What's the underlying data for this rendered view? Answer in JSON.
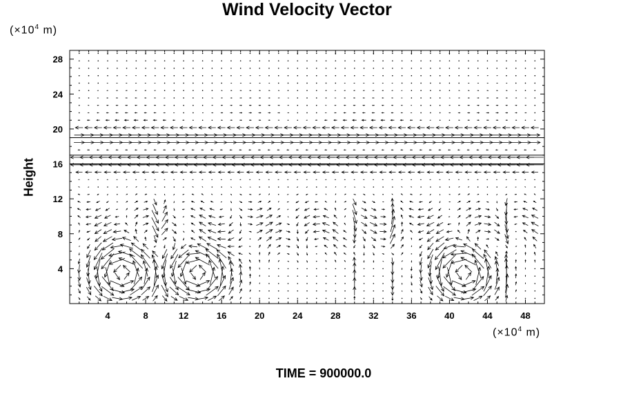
{
  "chart_data": {
    "type": "vector-field",
    "title": "Wind Velocity Vector",
    "ylabel": "Height",
    "x_unit": {
      "prefix": "(×10",
      "exp": "4",
      "suffix": " m)"
    },
    "y_unit": {
      "prefix": "(×10",
      "exp": "4",
      "suffix": " m)"
    },
    "xlim": [
      0,
      50
    ],
    "ylim": [
      0,
      29
    ],
    "xticks": [
      4,
      8,
      12,
      16,
      20,
      24,
      28,
      32,
      36,
      40,
      44,
      48
    ],
    "yticks": [
      4,
      8,
      12,
      16,
      20,
      24,
      28
    ],
    "grid": false,
    "horizontal_lines_y": [
      16,
      17,
      19
    ],
    "vortex_centers_x": [
      5.5,
      13.5,
      41.5
    ],
    "jet_levels": [
      {
        "y": 19,
        "direction": "right"
      },
      {
        "y": 17,
        "direction": "left"
      },
      {
        "y": 16,
        "direction": "left"
      }
    ]
  },
  "footer": {
    "time": "TIME = 900000.0"
  }
}
